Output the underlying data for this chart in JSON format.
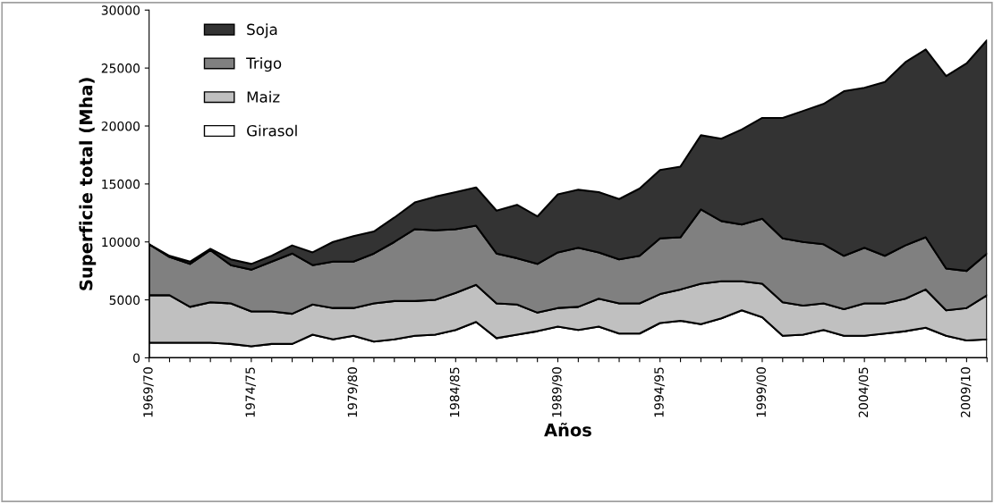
{
  "chart_data": {
    "type": "area",
    "stacked": true,
    "xlabel": "Años",
    "ylabel": "Superficie total (Mha)",
    "categories": [
      "1969/70",
      null,
      null,
      null,
      null,
      "1974/75",
      null,
      null,
      null,
      null,
      "1979/80",
      null,
      null,
      null,
      null,
      "1984/85",
      null,
      null,
      null,
      null,
      "1989/90",
      null,
      null,
      null,
      null,
      "1994/95",
      null,
      null,
      null,
      null,
      "1999/00",
      null,
      null,
      null,
      null,
      "2004/05",
      null,
      null,
      null,
      null,
      "2009/10",
      null
    ],
    "series": [
      {
        "name": "Girasol",
        "color": "#ffffff",
        "values": [
          1300,
          1300,
          1300,
          1300,
          1200,
          1000,
          1200,
          1200,
          2000,
          1600,
          1900,
          1400,
          1600,
          1900,
          2000,
          2400,
          3100,
          1700,
          2000,
          2300,
          2700,
          2400,
          2700,
          2100,
          2100,
          3000,
          3200,
          2900,
          3400,
          4100,
          3500,
          1900,
          2000,
          2400,
          1900,
          1900,
          2100,
          2300,
          2600,
          1900,
          1500,
          1600
        ]
      },
      {
        "name": "Maiz",
        "color": "#c0c0c0",
        "values": [
          4100,
          4100,
          3100,
          3500,
          3500,
          3000,
          2800,
          2600,
          2600,
          2700,
          2400,
          3300,
          3300,
          3000,
          3000,
          3200,
          3200,
          3000,
          2600,
          1600,
          1600,
          2000,
          2400,
          2600,
          2600,
          2500,
          2700,
          3500,
          3200,
          2500,
          2900,
          2900,
          2500,
          2300,
          2300,
          2800,
          2600,
          2800,
          3300,
          2200,
          2800,
          3800
        ]
      },
      {
        "name": "Trigo",
        "color": "#808080",
        "values": [
          4400,
          3300,
          3700,
          4500,
          3300,
          3600,
          4300,
          5200,
          3400,
          4000,
          4000,
          4300,
          5100,
          6200,
          6000,
          5500,
          5100,
          4300,
          4000,
          4200,
          4800,
          5100,
          4000,
          3800,
          4100,
          4800,
          4500,
          6400,
          5200,
          4900,
          5600,
          5500,
          5500,
          5100,
          4600,
          4800,
          4100,
          4600,
          4500,
          3600,
          3200,
          3600
        ]
      },
      {
        "name": "Soja",
        "color": "#333333",
        "values": [
          0,
          100,
          200,
          100,
          500,
          500,
          500,
          700,
          1100,
          1700,
          2200,
          1900,
          2100,
          2300,
          2900,
          3200,
          3300,
          3700,
          4600,
          4100,
          5000,
          5000,
          5200,
          5200,
          5800,
          5900,
          6100,
          6400,
          7100,
          8200,
          8700,
          10400,
          11300,
          12100,
          14200,
          13800,
          15000,
          15800,
          16200,
          16600,
          17900,
          18400
        ]
      }
    ],
    "ylim": [
      0,
      30000
    ],
    "yticks": [
      0,
      5000,
      10000,
      15000,
      20000,
      25000,
      30000
    ],
    "grid": false,
    "legend": "top left"
  }
}
